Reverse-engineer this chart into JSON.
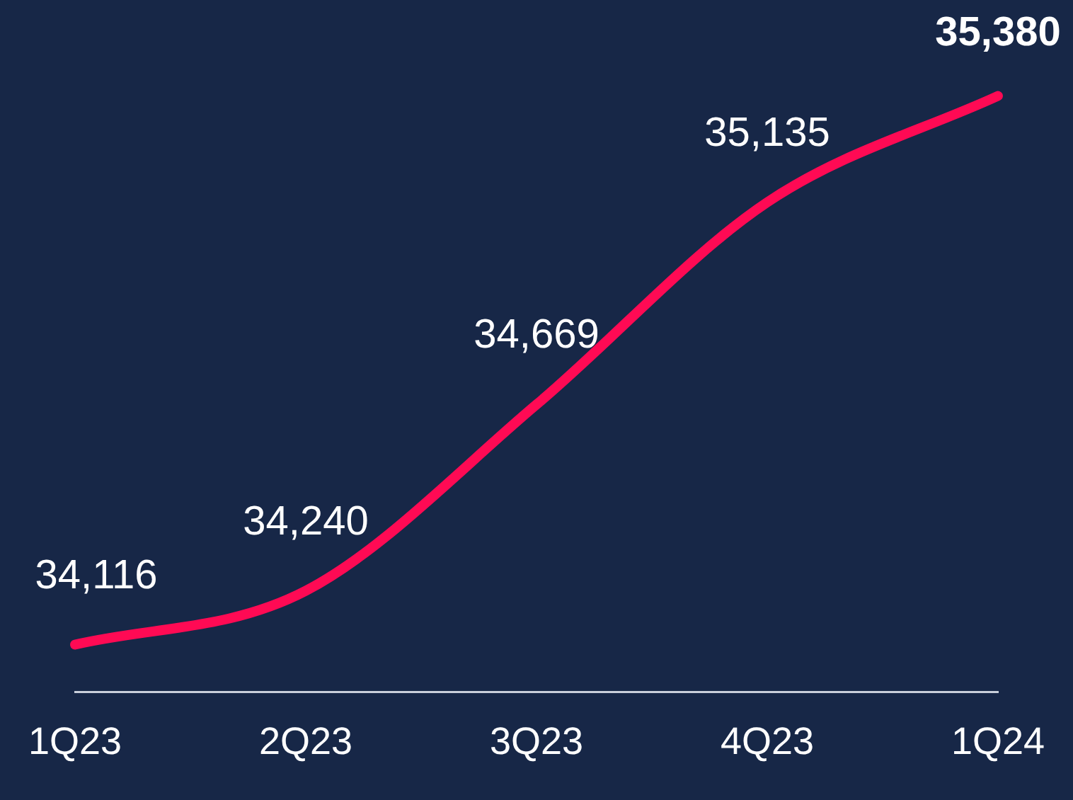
{
  "chart_data": {
    "type": "line",
    "categories": [
      "1Q23",
      "2Q23",
      "3Q23",
      "4Q23",
      "1Q24"
    ],
    "series": [
      {
        "color": "#ff0a54",
        "values": [
          34116,
          34240,
          34669,
          35135,
          35380
        ],
        "value_labels": [
          "34,116",
          "34,240",
          "34,669",
          "35,135",
          "35,380"
        ]
      }
    ],
    "tick_labels": "x",
    "grid": false,
    "legend": false,
    "marker": "none",
    "line_style": "solid"
  }
}
